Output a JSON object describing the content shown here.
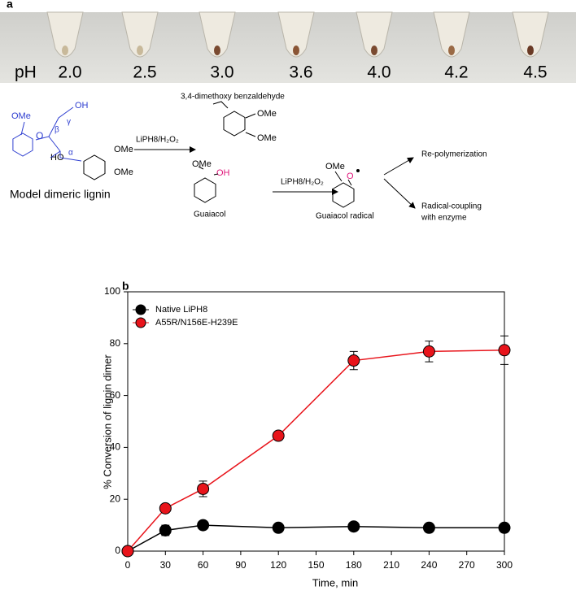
{
  "panel_a": {
    "label": "a",
    "ph_label": "pH",
    "ph_values": [
      "2.0",
      "2.5",
      "3.0",
      "3.6",
      "4.0",
      "4.2",
      "4.5"
    ]
  },
  "scheme": {
    "reactant": "Model dimeric lignin",
    "ome": "OMe",
    "oh": "OH",
    "ho": "HO",
    "beta": "β",
    "gamma": "γ",
    "alpha": "α",
    "ether_o": "O",
    "reagent": "LiPH8/H₂O₂",
    "product_1": "3,4-dimethoxy benzaldehyde",
    "product_2": "Guaiacol",
    "radical": "Guaiacol radical",
    "radical_o": "O",
    "fate_1": "Re-polymerization",
    "fate_2": [
      "Radical-coupling",
      "with enzyme"
    ]
  },
  "chart_data": {
    "type": "line",
    "label": "b",
    "xlabel": "Time, min",
    "ylabel": "% Conversion of lignin dimer",
    "x": [
      0,
      30,
      60,
      120,
      180,
      240,
      300
    ],
    "series": [
      {
        "name": "Native LiPH8",
        "color": "#000000",
        "values": [
          0,
          8,
          10,
          9,
          9.5,
          9,
          9
        ],
        "errors": [
          0,
          2,
          0.8,
          0.6,
          0.8,
          0.6,
          0.6
        ]
      },
      {
        "name": "A55R/N156E-H239E",
        "color": "#e8141b",
        "values": [
          0,
          16.5,
          24,
          44.5,
          73.5,
          77,
          77.5
        ],
        "errors": [
          0,
          0.6,
          3,
          0.6,
          3.5,
          4,
          5.5
        ]
      }
    ],
    "xlim": [
      0,
      300
    ],
    "xticks": [
      0,
      30,
      60,
      90,
      120,
      150,
      180,
      210,
      240,
      270,
      300
    ],
    "ylim": [
      0,
      100
    ],
    "yticks": [
      0,
      20,
      40,
      60,
      80,
      100
    ],
    "grid": false,
    "legend": "upper left"
  }
}
